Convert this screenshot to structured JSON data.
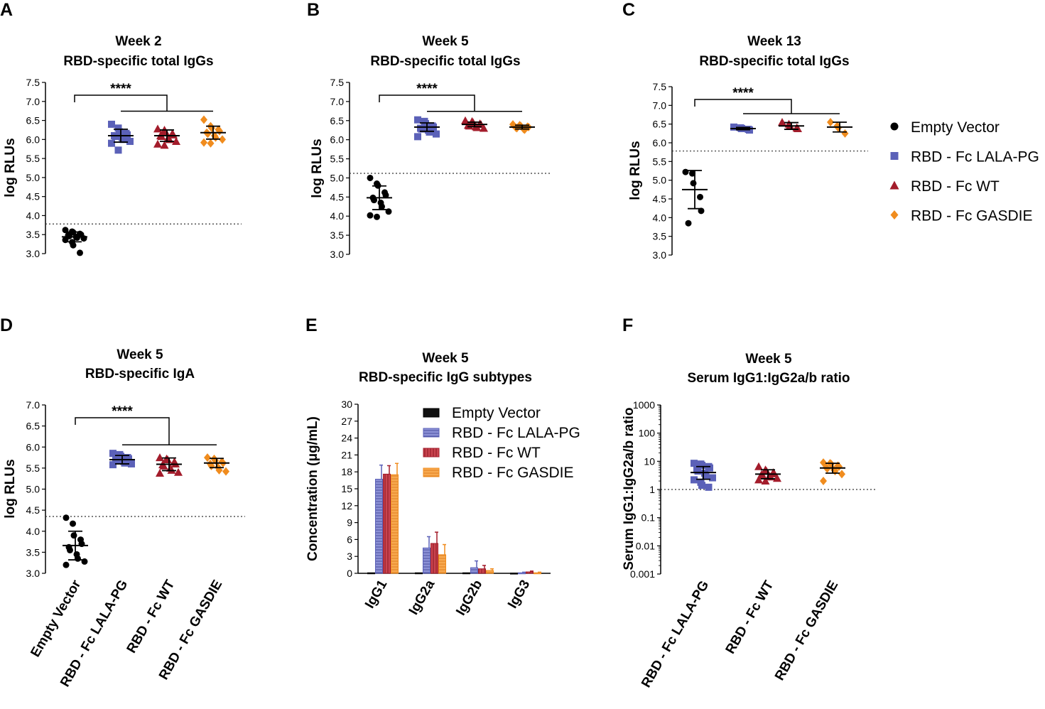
{
  "colors": {
    "Empty Vector": "#000000",
    "RBD - Fc LALA-PG": "#5b61b8",
    "RBD - Fc WT": "#a31c2b",
    "RBD - Fc GASDIE": "#f08c1e"
  },
  "groups": [
    "Empty Vector",
    "RBD - Fc LALA-PG",
    "RBD - Fc WT",
    "RBD - Fc GASDIE"
  ],
  "legend": {
    "items": [
      {
        "label": "Empty Vector",
        "marker": "circle"
      },
      {
        "label": "RBD - Fc LALA-PG",
        "marker": "square"
      },
      {
        "label": "RBD - Fc WT",
        "marker": "triangle"
      },
      {
        "label": "RBD - Fc GASDIE",
        "marker": "diamond"
      }
    ]
  },
  "chart_data": [
    {
      "panel": "A",
      "type": "scatter",
      "title": [
        "Week 2",
        "RBD-specific total IgGs"
      ],
      "ylabel": "log RLUs",
      "ylim": [
        3.0,
        7.5
      ],
      "yticks": [
        "3.0",
        "3.5",
        "4.0",
        "4.5",
        "5.0",
        "5.5",
        "6.0",
        "6.5",
        "7.0",
        "7.5"
      ],
      "threshold": 3.78,
      "significance": "****",
      "series": [
        {
          "name": "Empty Vector",
          "mean": 3.44,
          "sd": 0.13,
          "points": [
            3.62,
            3.58,
            3.56,
            3.52,
            3.5,
            3.48,
            3.46,
            3.44,
            3.42,
            3.4,
            3.36,
            3.3,
            3.22,
            3.02
          ]
        },
        {
          "name": "RBD - Fc LALA-PG",
          "mean": 6.1,
          "sd": 0.17,
          "points": [
            6.4,
            6.3,
            6.2,
            6.16,
            6.12,
            6.1,
            6.08,
            6.05,
            6.0,
            5.95,
            5.9,
            5.72
          ]
        },
        {
          "name": "RBD - Fc WT",
          "mean": 6.1,
          "sd": 0.15,
          "points": [
            6.28,
            6.25,
            6.2,
            6.15,
            6.12,
            6.1,
            6.08,
            6.05,
            6.0,
            5.95,
            5.88,
            5.85
          ]
        },
        {
          "name": "RBD - Fc GASDIE",
          "mean": 6.18,
          "sd": 0.17,
          "points": [
            6.52,
            6.35,
            6.3,
            6.26,
            6.22,
            6.18,
            6.15,
            6.1,
            6.05,
            6.0,
            5.92,
            5.9
          ]
        }
      ]
    },
    {
      "panel": "B",
      "type": "scatter",
      "title": [
        "Week 5",
        "RBD-specific total IgGs"
      ],
      "ylabel": "log RLUs",
      "ylim": [
        3.0,
        7.5
      ],
      "yticks": [
        "3.0",
        "3.5",
        "4.0",
        "4.5",
        "5.0",
        "5.5",
        "6.0",
        "6.5",
        "7.0",
        "7.5"
      ],
      "threshold": 5.12,
      "significance": "****",
      "series": [
        {
          "name": "Empty Vector",
          "mean": 4.48,
          "sd": 0.31,
          "points": [
            5.0,
            4.85,
            4.8,
            4.62,
            4.55,
            4.48,
            4.42,
            4.35,
            4.25,
            4.12,
            4.02,
            3.98
          ]
        },
        {
          "name": "RBD - Fc LALA-PG",
          "mean": 6.33,
          "sd": 0.11,
          "points": [
            6.52,
            6.48,
            6.42,
            6.36,
            6.33,
            6.3,
            6.28,
            6.25,
            6.2,
            6.15,
            6.08
          ]
        },
        {
          "name": "RBD - Fc WT",
          "mean": 6.4,
          "sd": 0.06,
          "points": [
            6.5,
            6.48,
            6.45,
            6.42,
            6.4,
            6.38,
            6.36,
            6.34,
            6.32,
            6.3
          ]
        },
        {
          "name": "RBD - Fc GASDIE",
          "mean": 6.33,
          "sd": 0.05,
          "points": [
            6.4,
            6.38,
            6.36,
            6.34,
            6.33,
            6.32,
            6.3,
            6.28,
            6.26
          ]
        }
      ]
    },
    {
      "panel": "C",
      "type": "scatter",
      "title": [
        "Week 13",
        "RBD-specific total IgGs"
      ],
      "ylabel": "log RLUs",
      "ylim": [
        3.0,
        7.5
      ],
      "yticks": [
        "3.0",
        "3.5",
        "4.0",
        "4.5",
        "5.0",
        "5.5",
        "6.0",
        "6.5",
        "7.0",
        "7.5"
      ],
      "threshold": 5.78,
      "significance": "****",
      "series": [
        {
          "name": "Empty Vector",
          "mean": 4.75,
          "sd": 0.51,
          "points": [
            5.22,
            5.18,
            4.92,
            4.55,
            4.18,
            3.85
          ]
        },
        {
          "name": "RBD - Fc LALA-PG",
          "mean": 6.38,
          "sd": 0.03,
          "points": [
            6.42,
            6.4,
            6.38,
            6.36,
            6.34
          ]
        },
        {
          "name": "RBD - Fc WT",
          "mean": 6.45,
          "sd": 0.09,
          "points": [
            6.55,
            6.5,
            6.46,
            6.4,
            6.38
          ]
        },
        {
          "name": "RBD - Fc GASDIE",
          "mean": 6.42,
          "sd": 0.13,
          "points": [
            6.55,
            6.45,
            6.4,
            6.25
          ]
        }
      ]
    },
    {
      "panel": "D",
      "type": "scatter",
      "title": [
        "Week 5",
        "RBD-specific IgA"
      ],
      "ylabel": "log RLUs",
      "ylim": [
        3.0,
        7.0
      ],
      "yticks": [
        "3.0",
        "3.5",
        "4.0",
        "4.5",
        "5.0",
        "5.5",
        "6.0",
        "6.5",
        "7.0"
      ],
      "threshold": 4.35,
      "significance": "****",
      "xcategories": [
        "Empty Vector",
        "RBD - Fc LALA-PG",
        "RBD - Fc WT",
        "RBD - Fc GASDIE"
      ],
      "series": [
        {
          "name": "Empty Vector",
          "mean": 3.66,
          "sd": 0.34,
          "points": [
            4.32,
            4.18,
            3.9,
            3.8,
            3.7,
            3.62,
            3.55,
            3.45,
            3.35,
            3.28,
            3.2
          ]
        },
        {
          "name": "RBD - Fc LALA-PG",
          "mean": 5.7,
          "sd": 0.1,
          "points": [
            5.85,
            5.82,
            5.78,
            5.75,
            5.72,
            5.7,
            5.68,
            5.66,
            5.62,
            5.6,
            5.58
          ]
        },
        {
          "name": "RBD - Fc WT",
          "mean": 5.59,
          "sd": 0.15,
          "points": [
            5.75,
            5.72,
            5.7,
            5.65,
            5.6,
            5.58,
            5.55,
            5.5,
            5.45,
            5.4,
            5.38
          ]
        },
        {
          "name": "RBD - Fc GASDIE",
          "mean": 5.62,
          "sd": 0.11,
          "points": [
            5.75,
            5.72,
            5.68,
            5.65,
            5.62,
            5.6,
            5.55,
            5.52,
            5.45,
            5.42
          ]
        }
      ]
    },
    {
      "panel": "E",
      "type": "bar",
      "title": [
        "Week 5",
        "RBD-specific IgG subtypes"
      ],
      "ylabel": "Concentration (μg/mL)",
      "ylim": [
        0,
        30
      ],
      "yticks": [
        "0",
        "3",
        "6",
        "9",
        "12",
        "15",
        "18",
        "21",
        "24",
        "27",
        "30"
      ],
      "categories": [
        "IgG1",
        "IgG2a",
        "IgG2b",
        "IgG3"
      ],
      "series": [
        {
          "name": "Empty Vector",
          "values": [
            0.1,
            0.1,
            0.1,
            0.05
          ],
          "errors": [
            0,
            0,
            0,
            0
          ]
        },
        {
          "name": "RBD - Fc LALA-PG",
          "values": [
            16.7,
            4.5,
            1.0,
            0.1
          ],
          "errors": [
            2.5,
            2.0,
            1.2,
            0.1
          ]
        },
        {
          "name": "RBD - Fc WT",
          "values": [
            17.6,
            5.3,
            0.8,
            0.25
          ],
          "errors": [
            1.5,
            2.0,
            0.6,
            0.15
          ]
        },
        {
          "name": "RBD - Fc GASDIE",
          "values": [
            17.5,
            3.3,
            0.5,
            0.1
          ],
          "errors": [
            2.0,
            1.8,
            0.3,
            0.1
          ]
        }
      ]
    },
    {
      "panel": "F",
      "type": "scatter",
      "title": [
        "Week 5",
        "Serum IgG1:IgG2a/b ratio"
      ],
      "ylabel": "Serum IgG1:IgG2a/b ratio",
      "yscale": "log",
      "ylim": [
        0.001,
        1000
      ],
      "yticks": [
        "0.001",
        "0.01",
        "0.1",
        "1",
        "10",
        "100",
        "1000"
      ],
      "threshold": 1,
      "xcategories": [
        "RBD - Fc LALA-PG",
        "RBD - Fc WT",
        "RBD - Fc GASDIE"
      ],
      "series": [
        {
          "name": "RBD - Fc LALA-PG",
          "mean": 4.0,
          "sd_low": 2.3,
          "sd_high": 6.5,
          "points": [
            8.5,
            8.0,
            7.2,
            6.5,
            5.8,
            5.0,
            4.5,
            3.8,
            3.2,
            2.6,
            2.2,
            1.8,
            1.4,
            1.2
          ]
        },
        {
          "name": "RBD - Fc WT",
          "mean": 3.5,
          "sd_low": 2.4,
          "sd_high": 5.0,
          "points": [
            6.5,
            5.0,
            4.5,
            4.0,
            3.6,
            3.4,
            3.2,
            3.0,
            2.8,
            2.5,
            2.2,
            2.0
          ]
        },
        {
          "name": "RBD - Fc GASDIE",
          "mean": 5.8,
          "sd_low": 3.8,
          "sd_high": 8.5,
          "points": [
            9.0,
            8.5,
            8.0,
            7.0,
            6.5,
            6.0,
            5.5,
            5.0,
            4.5,
            3.5,
            2.0
          ]
        }
      ]
    }
  ]
}
